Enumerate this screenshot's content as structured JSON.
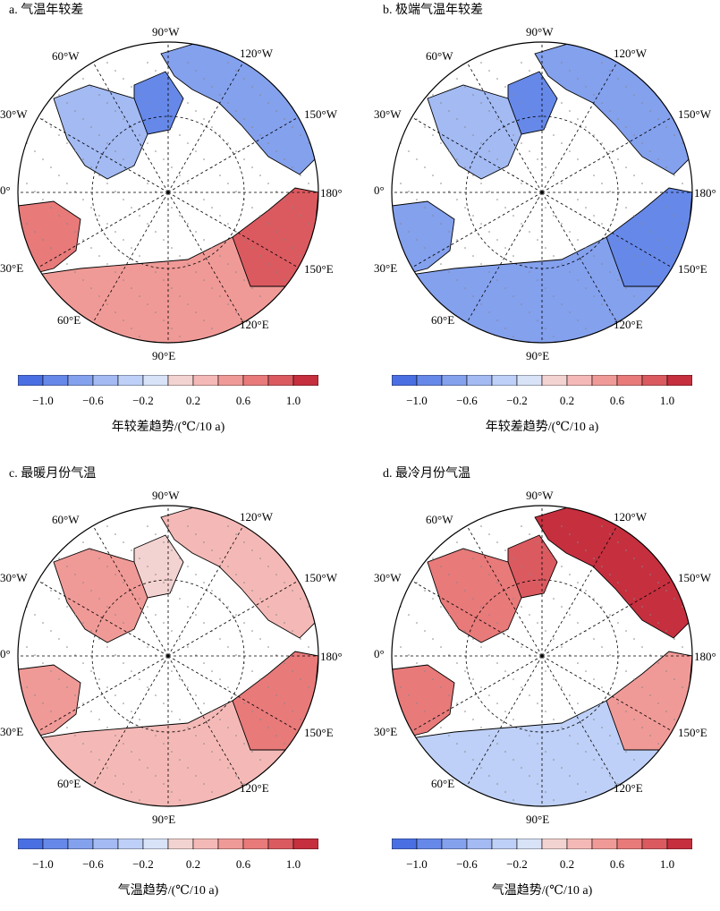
{
  "panels": [
    {
      "title": "a. 气温年较差",
      "scheme": "mixed",
      "colorbar_label": "年较差趋势/(℃/10 a)"
    },
    {
      "title": "b. 极端气温年较差",
      "scheme": "blue",
      "colorbar_label": "年较差趋势/(℃/10 a)"
    },
    {
      "title": "c. 最暖月份气温",
      "scheme": "red",
      "colorbar_label": "气温趋势/(℃/10 a)"
    },
    {
      "title": "d. 最冷月份气温",
      "scheme": "hot",
      "colorbar_label": "气温趋势/(℃/10 a)"
    }
  ],
  "longitude_labels": {
    "w90": "90°W",
    "w120": "120°W",
    "w150": "150°W",
    "e180": "180°",
    "e150": "150°E",
    "e120": "120°E",
    "e90": "90°E",
    "e60": "60°E",
    "e30": "30°E",
    "zero": "0°",
    "w30": "30°W",
    "w60": "60°W"
  },
  "colorbar": {
    "tick_labels": [
      "−1.0",
      "−0.6",
      "−0.2",
      "0.2",
      "0.6",
      "1.0"
    ],
    "colors": [
      "#4a6fe3",
      "#6688e8",
      "#84a1ee",
      "#a3baf3",
      "#bed0f7",
      "#d8e3f8",
      "#f3d3d1",
      "#f4b9b6",
      "#f09a97",
      "#e87a7a",
      "#da5a60",
      "#c52f3e"
    ]
  }
}
